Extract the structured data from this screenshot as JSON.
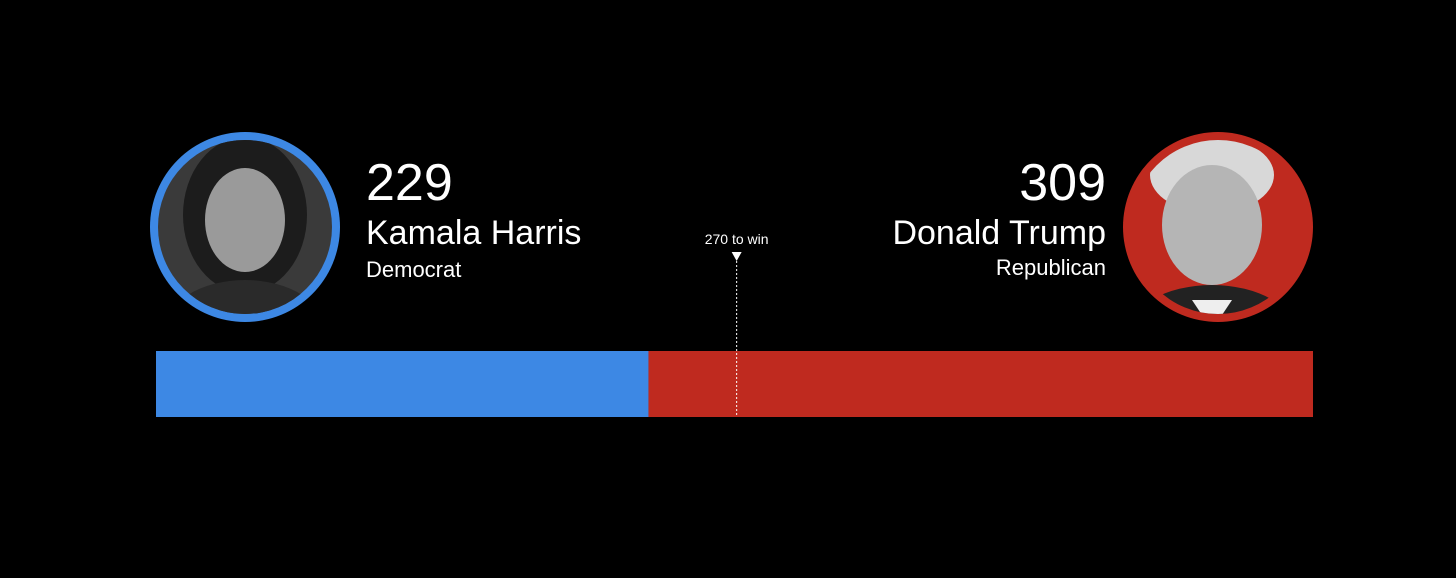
{
  "chart_data": {
    "type": "electoral-bar",
    "xlim": [
      0,
      538
    ],
    "series": [
      {
        "name": "Kamala Harris",
        "party": "Democrat",
        "color": "#3d88e4",
        "values": [
          229
        ]
      },
      {
        "name": "Donald Trump",
        "party": "Republican",
        "color": "#bf2a1f",
        "values": [
          309
        ]
      }
    ],
    "annotation": {
      "value": 270,
      "label": "270 to win"
    }
  }
}
